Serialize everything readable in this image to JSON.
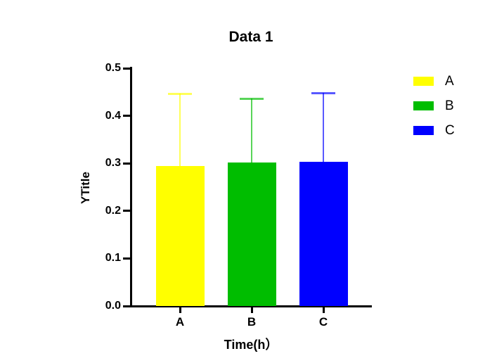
{
  "chart_data": {
    "type": "bar",
    "title": "Data 1",
    "xlabel": "Time(h）",
    "ylabel": "YTitle",
    "categories": [
      "A",
      "B",
      "C"
    ],
    "values": [
      0.295,
      0.302,
      0.303
    ],
    "errors_up": [
      0.152,
      0.134,
      0.145
    ],
    "bar_colors": [
      "#FFFF00",
      "#00BD00",
      "#0000FF"
    ],
    "ylim": [
      0.0,
      0.5
    ],
    "ytick_step": 0.1,
    "ytick_labels": [
      "0.0",
      "0.1",
      "0.2",
      "0.3",
      "0.4",
      "0.5"
    ],
    "grid": "off",
    "legend": {
      "position": "right",
      "entries": [
        {
          "label": "A",
          "color": "#FFFF00"
        },
        {
          "label": "B",
          "color": "#00BD00"
        },
        {
          "label": "C",
          "color": "#0000FF"
        }
      ]
    },
    "axis_color": "#000000",
    "background_color": "#FFFFFF"
  }
}
